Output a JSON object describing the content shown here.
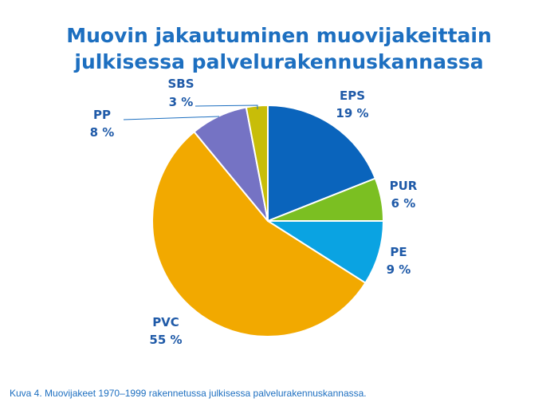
{
  "title_lines": [
    "Muovin jakautuminen muovijakeittain",
    "julkisessa palvelurakennuskannassa"
  ],
  "caption": "Kuva 4. Muovijakeet 1970–1999 rakennetussa julkisessa palvelurakennuskannassa.",
  "chart_data": {
    "type": "pie",
    "title": "Muovin jakautuminen muovijakeittain julkisessa palvelurakennuskannassa",
    "slices": [
      {
        "label": "EPS",
        "value": 19,
        "value_text": "19 %",
        "color": "#0a64bc"
      },
      {
        "label": "PUR",
        "value": 6,
        "value_text": "6 %",
        "color": "#7bbf22"
      },
      {
        "label": "PE",
        "value": 9,
        "value_text": "9 %",
        "color": "#0aa3e2"
      },
      {
        "label": "PVC",
        "value": 55,
        "value_text": "55 %",
        "color": "#f2a900"
      },
      {
        "label": "PP",
        "value": 8,
        "value_text": "8 %",
        "color": "#7573c4"
      },
      {
        "label": "SBS",
        "value": 3,
        "value_text": "3 %",
        "color": "#c8bd08"
      }
    ],
    "start_angle": "12 o'clock",
    "direction": "clockwise"
  }
}
